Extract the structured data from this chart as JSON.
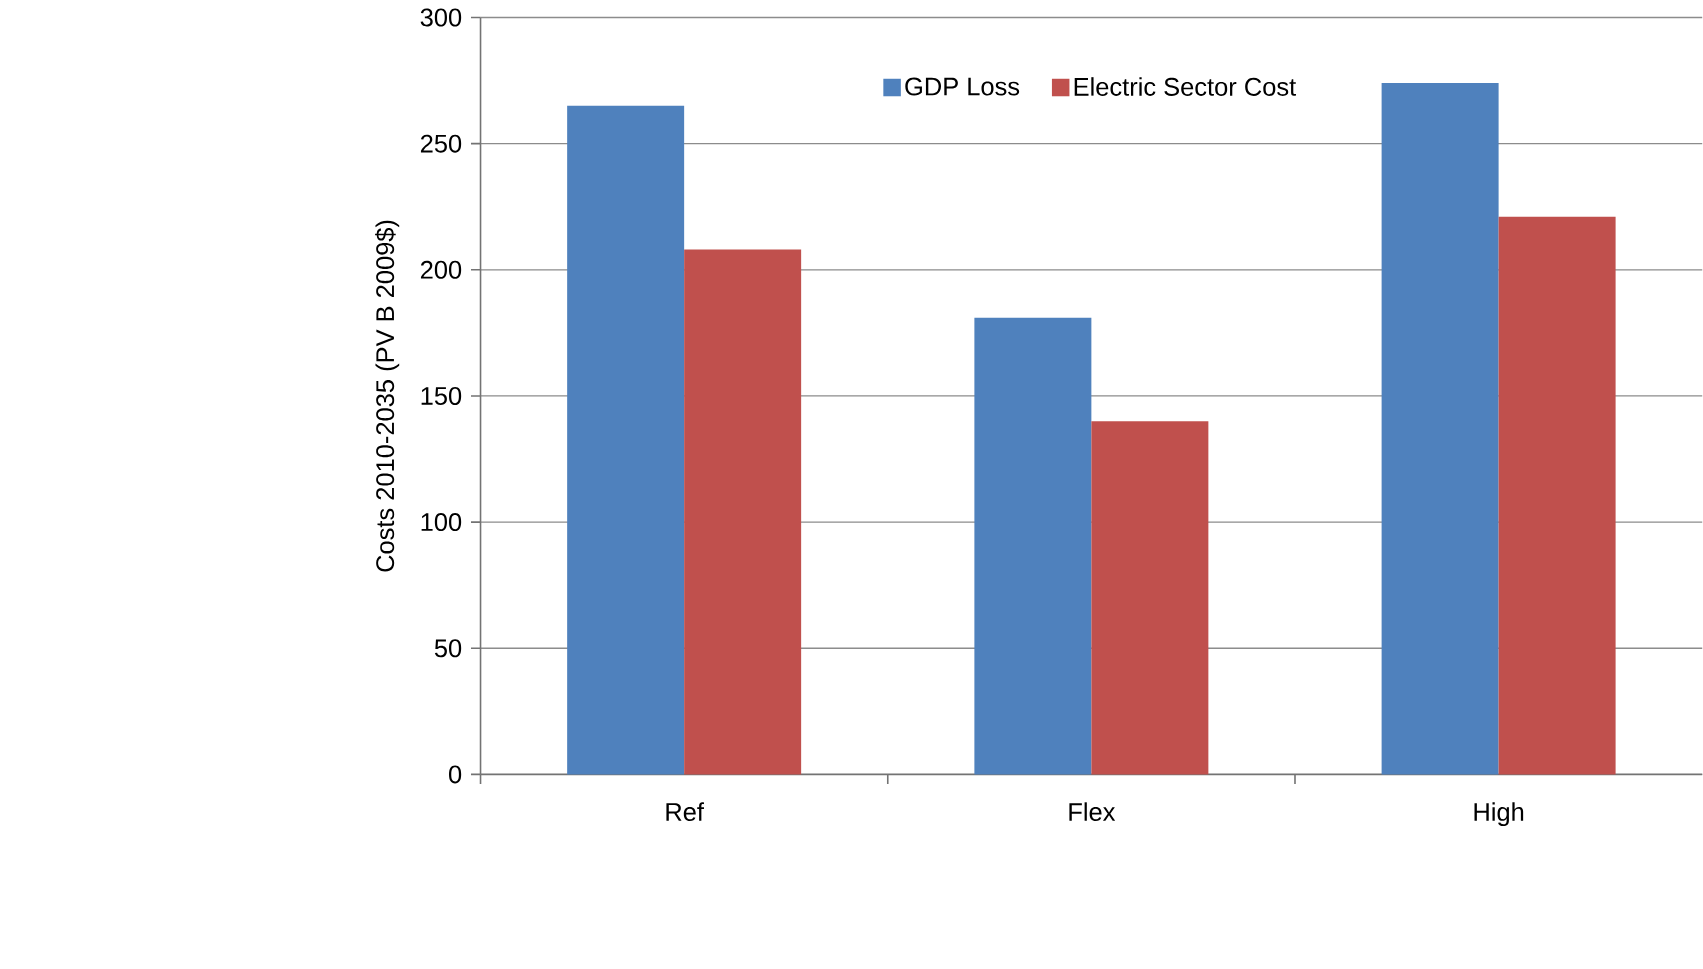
{
  "chart_data": {
    "type": "bar",
    "ylabel": "Costs 2010-2035 (PV B 2009$)",
    "categories": [
      "Ref",
      "Flex",
      "High"
    ],
    "series": [
      {
        "name": "GDP Loss",
        "color": "#4f81bd",
        "values": [
          265,
          181,
          274
        ]
      },
      {
        "name": "Electric Sector Cost",
        "color": "#c0504d",
        "values": [
          208,
          140,
          221
        ]
      }
    ],
    "ylim": [
      0,
      300
    ],
    "yticks": [
      0,
      50,
      100,
      150,
      200,
      250,
      300
    ],
    "grid": "y",
    "legend": "top"
  }
}
